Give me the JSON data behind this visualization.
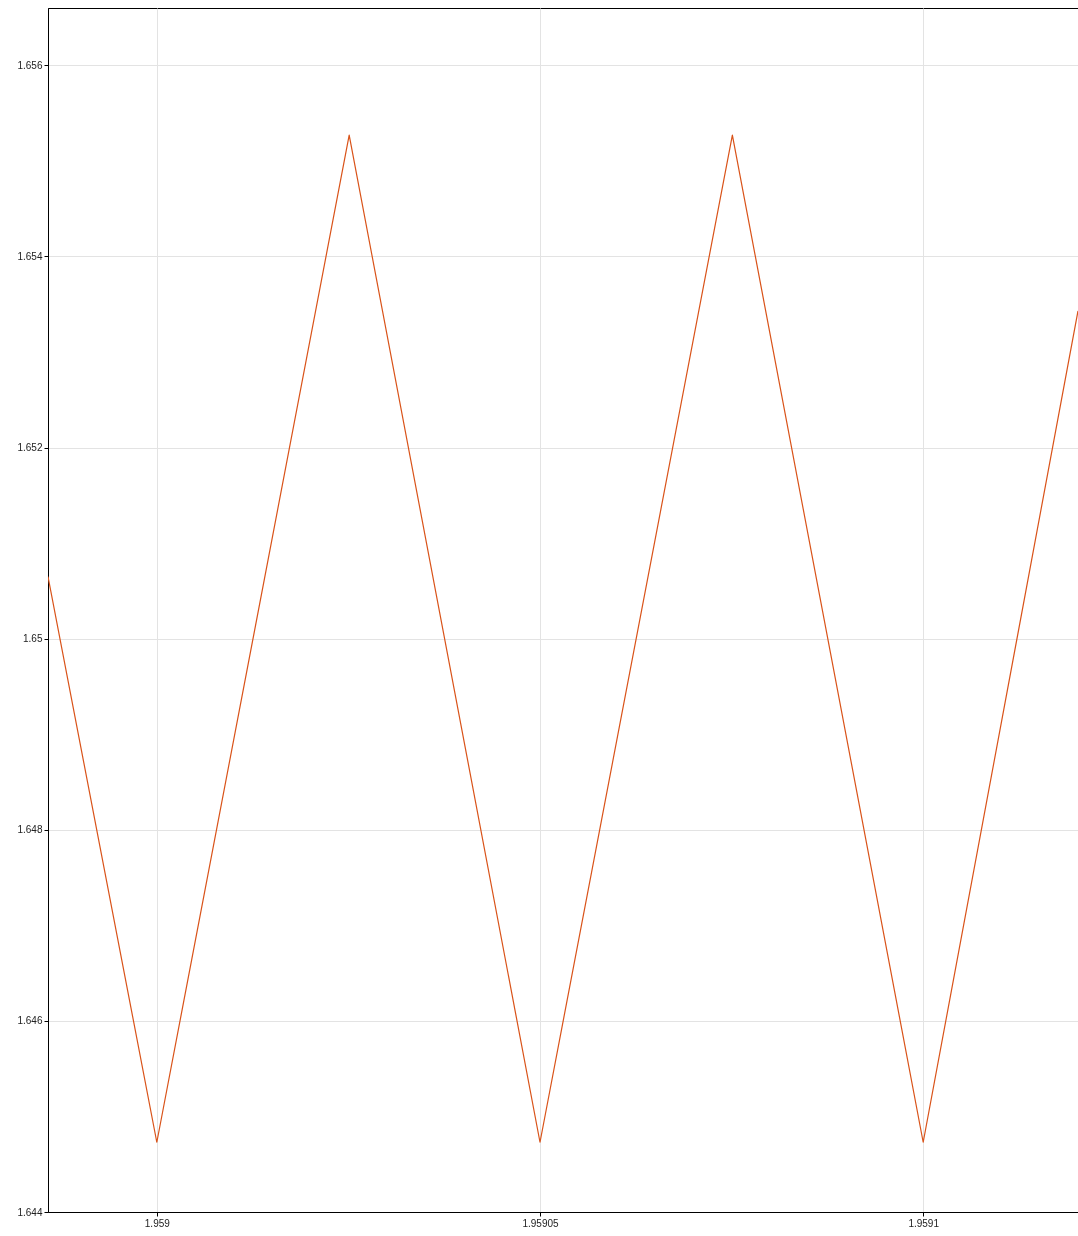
{
  "chart_data": {
    "type": "line",
    "x": [
      1.9589858,
      1.959,
      1.9590251,
      1.95905,
      1.9590751,
      1.9591,
      1.9591202
    ],
    "series": [
      {
        "color": "#d95319",
        "values": [
          1.65065,
          1.64473,
          1.65527,
          1.64473,
          1.65527,
          1.64473,
          1.65343
        ]
      }
    ],
    "xlim": [
      1.9589858,
      1.9591202
    ],
    "xticks": [
      1.959,
      1.95905,
      1.9591
    ],
    "ylim": [
      1.644,
      1.6566
    ],
    "yticks": [
      1.644,
      1.646,
      1.648,
      1.65,
      1.652,
      1.654,
      1.656
    ],
    "grid": true,
    "marker": "none",
    "line_style": "solid"
  }
}
